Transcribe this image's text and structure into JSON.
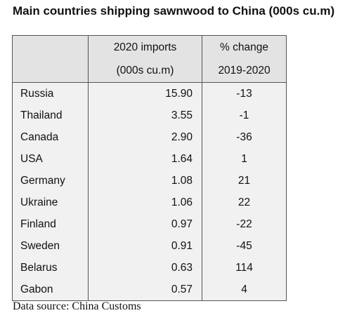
{
  "title": "Main countries shipping sawnwood to China (000s cu.m)",
  "source": "Data source: China Customs",
  "chart_data": {
    "type": "table",
    "title": "Main countries shipping sawnwood to China (000s cu.m)",
    "columns": [
      {
        "header": "",
        "subheader": ""
      },
      {
        "header": "2020 imports",
        "subheader": "(000s cu.m)"
      },
      {
        "header": "% change",
        "subheader": "2019-2020"
      }
    ],
    "rows": [
      {
        "country": "Russia",
        "imports": "15.90",
        "change": "-13"
      },
      {
        "country": "Thailand",
        "imports": "3.55",
        "change": "-1"
      },
      {
        "country": "Canada",
        "imports": "2.90",
        "change": "-36"
      },
      {
        "country": "USA",
        "imports": "1.64",
        "change": "1"
      },
      {
        "country": "Germany",
        "imports": "1.08",
        "change": "21"
      },
      {
        "country": "Ukraine",
        "imports": "1.06",
        "change": "22"
      },
      {
        "country": "Finland",
        "imports": "0.97",
        "change": "-22"
      },
      {
        "country": "Sweden",
        "imports": "0.91",
        "change": "-45"
      },
      {
        "country": "Belarus",
        "imports": "0.63",
        "change": "114"
      },
      {
        "country": "Gabon",
        "imports": "0.57",
        "change": "4"
      }
    ],
    "source": "Data source: China Customs"
  }
}
